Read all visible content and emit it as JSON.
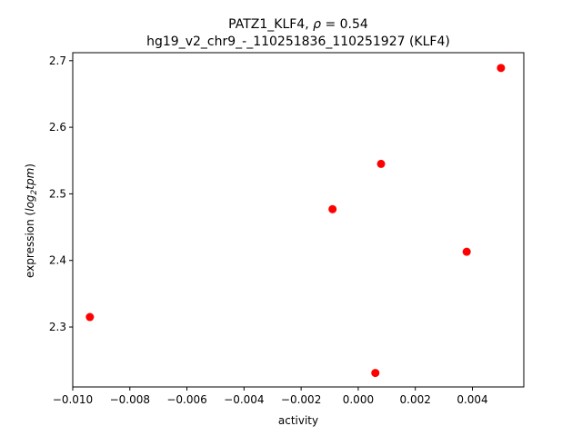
{
  "chart_data": {
    "type": "scatter",
    "title_line1_prefix": "PATZ1_KLF4, ",
    "title_line1_rho": "ρ",
    "title_line1_suffix": " = 0.54",
    "title_line2": "hg19_v2_chr9_-_110251836_110251927 (KLF4)",
    "xlabel": "activity",
    "ylabel_prefix": "expression (",
    "ylabel_math": "log",
    "ylabel_sub": "2",
    "ylabel_math2": "tpm",
    "ylabel_suffix": ")",
    "xlim": [
      -0.01,
      0.0058
    ],
    "ylim": [
      2.21,
      2.712
    ],
    "xticks": [
      -0.01,
      -0.008,
      -0.006,
      -0.004,
      -0.002,
      0.0,
      0.002,
      0.004
    ],
    "xtick_labels": [
      "−0.010",
      "−0.008",
      "−0.006",
      "−0.004",
      "−0.002",
      "0.000",
      "0.002",
      "0.004"
    ],
    "yticks": [
      2.3,
      2.4,
      2.5,
      2.6,
      2.7
    ],
    "ytick_labels": [
      "2.3",
      "2.4",
      "2.5",
      "2.6",
      "2.7"
    ],
    "marker_color": "#ff0000",
    "grid": false,
    "points": [
      {
        "x": -0.0094,
        "y": 2.315
      },
      {
        "x": -0.0009,
        "y": 2.477
      },
      {
        "x": 0.0008,
        "y": 2.545
      },
      {
        "x": 0.0006,
        "y": 2.231
      },
      {
        "x": 0.0038,
        "y": 2.413
      },
      {
        "x": 0.005,
        "y": 2.689
      }
    ]
  }
}
